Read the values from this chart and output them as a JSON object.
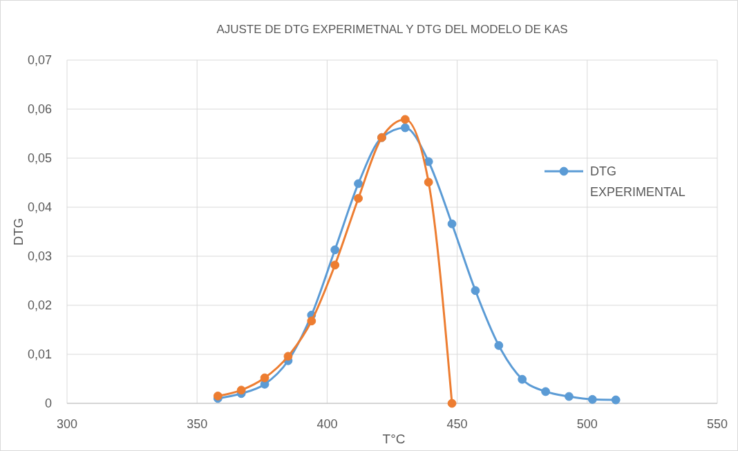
{
  "chart_data": {
    "type": "line",
    "title": "AJUSTE DE DTG EXPERIMETNAL Y DTG DEL MODELO DE KAS",
    "xlabel": "T°C",
    "ylabel": "DTG",
    "xlim": [
      300,
      550
    ],
    "xticks": [
      300,
      350,
      400,
      450,
      500,
      550
    ],
    "ylim": [
      0,
      0.07
    ],
    "yticks": [
      0,
      {
        "value": 0.01,
        "label": "0,01"
      },
      {
        "value": 0.02,
        "label": "0,02"
      },
      {
        "value": 0.03,
        "label": "0,03"
      },
      {
        "value": 0.04,
        "label": "0,04"
      },
      {
        "value": 0.05,
        "label": "0,05"
      },
      {
        "value": 0.06,
        "label": "0,06"
      },
      {
        "value": 0.07,
        "label": "0,07"
      }
    ],
    "grid": true,
    "legend": "right",
    "marker": "circle",
    "line_style": "solid",
    "series": [
      {
        "name": "DTG EXPERIMENTAL",
        "color": "#5b9bd5",
        "x": [
          358,
          367,
          376,
          385,
          394,
          403,
          412,
          421,
          430,
          439,
          448,
          457,
          466,
          475,
          484,
          493,
          502,
          511
        ],
        "values": [
          0.001,
          0.002,
          0.0039,
          0.0087,
          0.018,
          0.0313,
          0.0448,
          0.0542,
          0.0562,
          0.0493,
          0.0366,
          0.023,
          0.0118,
          0.0049,
          0.0024,
          0.0014,
          0.0008,
          0.0007
        ]
      },
      {
        "color": "#ed7d31",
        "x": [
          358,
          367,
          376,
          385,
          394,
          403,
          412,
          421,
          430,
          439,
          448
        ],
        "values": [
          0.0015,
          0.0027,
          0.0052,
          0.0096,
          0.0168,
          0.0282,
          0.0418,
          0.0542,
          0.0579,
          0.0451,
          0
        ]
      }
    ]
  }
}
